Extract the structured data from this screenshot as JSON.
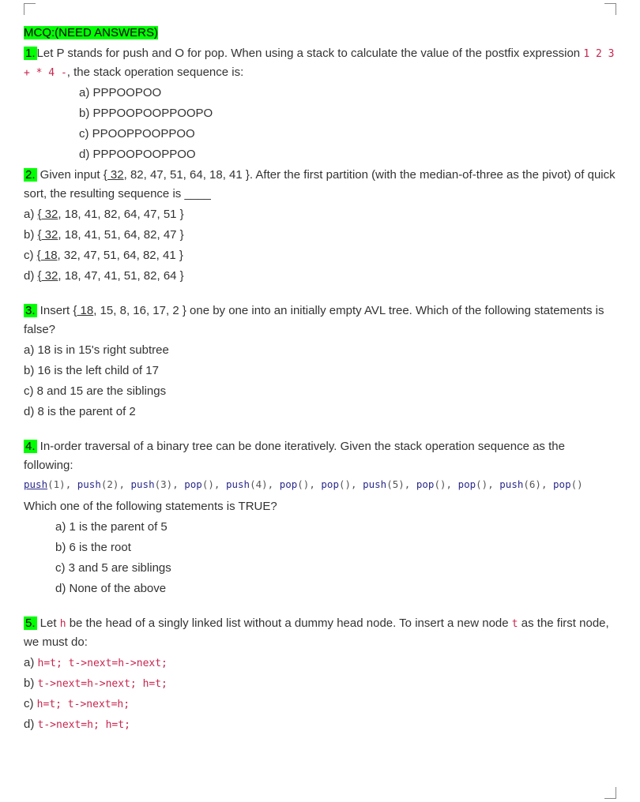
{
  "header": "MCQ:(NEED ANSWERS)",
  "q1": {
    "num": "1.",
    "text_a": "Let P stands for push and O for pop. When using a stack to calculate the value of the postfix expression ",
    "code": "1 2 3 + * 4 -",
    "text_b": ", the stack operation sequence is:",
    "a": "a)   PPPOOPOO",
    "b": "b)   PPPOOPOOPPOOPO",
    "c": "c)   PPOOPPOOPPOO",
    "d": "d)   PPPOOPOOPPOO"
  },
  "q2": {
    "num": "2.",
    "text_a": " Given input ",
    "link": "{ 32",
    "text_b": ", 82, 47, 51, 64, 18, 41 }. After the first partition (with the median-of-three as the pivot) of quick sort, the resulting sequence is ____",
    "a_pre": "a) ",
    "a_link": "{ 32",
    "a_post": ", 18, 41, 82, 64, 47, 51 }",
    "b_pre": "b) ",
    "b_link": "{ 32",
    "b_post": ", 18, 41, 51, 64, 82, 47 }",
    "c_pre": "c) ",
    "c_link": "{ 18",
    "c_post": ", 32, 47, 51, 64, 82, 41 }",
    "d_pre": "d) ",
    "d_link": "{ 32",
    "d_post": ", 18, 47, 41, 51, 82, 64 }"
  },
  "q3": {
    "num": "3.",
    "text_a": " Insert ",
    "link": "{ 18",
    "text_b": ", 15, 8, 16, 17, 2 } one by one into an initially empty AVL tree. Which of the following statements is false?",
    "a": "a) 18 is in 15's right subtree",
    "b": "b) 16 is the left child of 17",
    "c": "c) 8 and 15 are the siblings",
    "d": "d) 8 is the parent of 2"
  },
  "q4": {
    "num": "4.",
    "text_a": " In-order traversal of a binary tree can be done iteratively. Given the stack operation sequence as the following:",
    "ops": [
      {
        "fn": "push",
        "arg": "1",
        "ul": true
      },
      {
        "fn": "push",
        "arg": "2"
      },
      {
        "fn": "push",
        "arg": "3"
      },
      {
        "fn": "pop"
      },
      {
        "fn": "push",
        "arg": "4"
      },
      {
        "fn": "pop"
      },
      {
        "fn": "pop"
      },
      {
        "fn": "push",
        "arg": "5"
      },
      {
        "fn": "pop"
      },
      {
        "fn": "pop"
      },
      {
        "fn": "push",
        "arg": "6"
      },
      {
        "fn": "pop"
      }
    ],
    "sub": "Which one of the following statements is TRUE?",
    "a": "a)   1 is the parent of 5",
    "b": "b)   6 is the root",
    "c": "c)   3 and 5 are siblings",
    "d": "d)   None of the above"
  },
  "q5": {
    "num": "5.",
    "text_a": " Let ",
    "h": "h",
    "text_b": " be the head of a singly linked list without a dummy head node. To insert a new node ",
    "t": "t",
    "text_c": " as the first node, we must do:",
    "a_pre": "a) ",
    "a_code": "h=t; t->next=h->next;",
    "b_pre": "b) ",
    "b_code": "t->next=h->next; h=t;",
    "c_pre": "c) ",
    "c_code": "h=t; t->next=h;",
    "d_pre": "d) ",
    "d_code": "t->next=h; h=t;"
  }
}
